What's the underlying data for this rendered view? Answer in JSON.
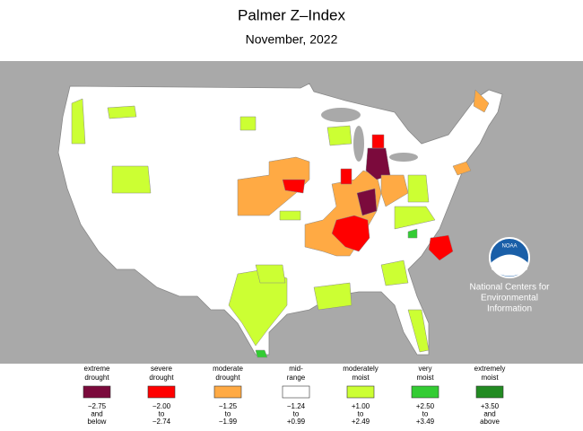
{
  "header": {
    "title": "Palmer Z–Index",
    "subtitle": "November, 2022"
  },
  "logo": {
    "badge": "NOAA",
    "lines": [
      "National Centers for",
      "Environmental",
      "Information"
    ]
  },
  "legend": [
    {
      "label": [
        "extreme",
        "drought"
      ],
      "color": "#7b0a3c",
      "range": [
        "−2.75",
        "and",
        "below"
      ]
    },
    {
      "label": [
        "severe",
        "drought"
      ],
      "color": "#ff0000",
      "range": [
        "−2.00",
        "to",
        "−2.74"
      ]
    },
    {
      "label": [
        "moderate",
        "drought"
      ],
      "color": "#ffaa44",
      "range": [
        "−1.25",
        "to",
        "−1.99"
      ]
    },
    {
      "label": [
        "mid-",
        "range"
      ],
      "color": "#ffffff",
      "range": [
        "−1.24",
        "to",
        "+0.99"
      ]
    },
    {
      "label": [
        "moderately",
        "moist"
      ],
      "color": "#ccff33",
      "range": [
        "+1.00",
        "to",
        "+2.49"
      ]
    },
    {
      "label": [
        "very",
        "moist"
      ],
      "color": "#33cc33",
      "range": [
        "+2.50",
        "to",
        "+3.49"
      ]
    },
    {
      "label": [
        "extremely",
        "moist"
      ],
      "color": "#228b22",
      "range": [
        "+3.50",
        "and",
        "above"
      ]
    }
  ]
}
